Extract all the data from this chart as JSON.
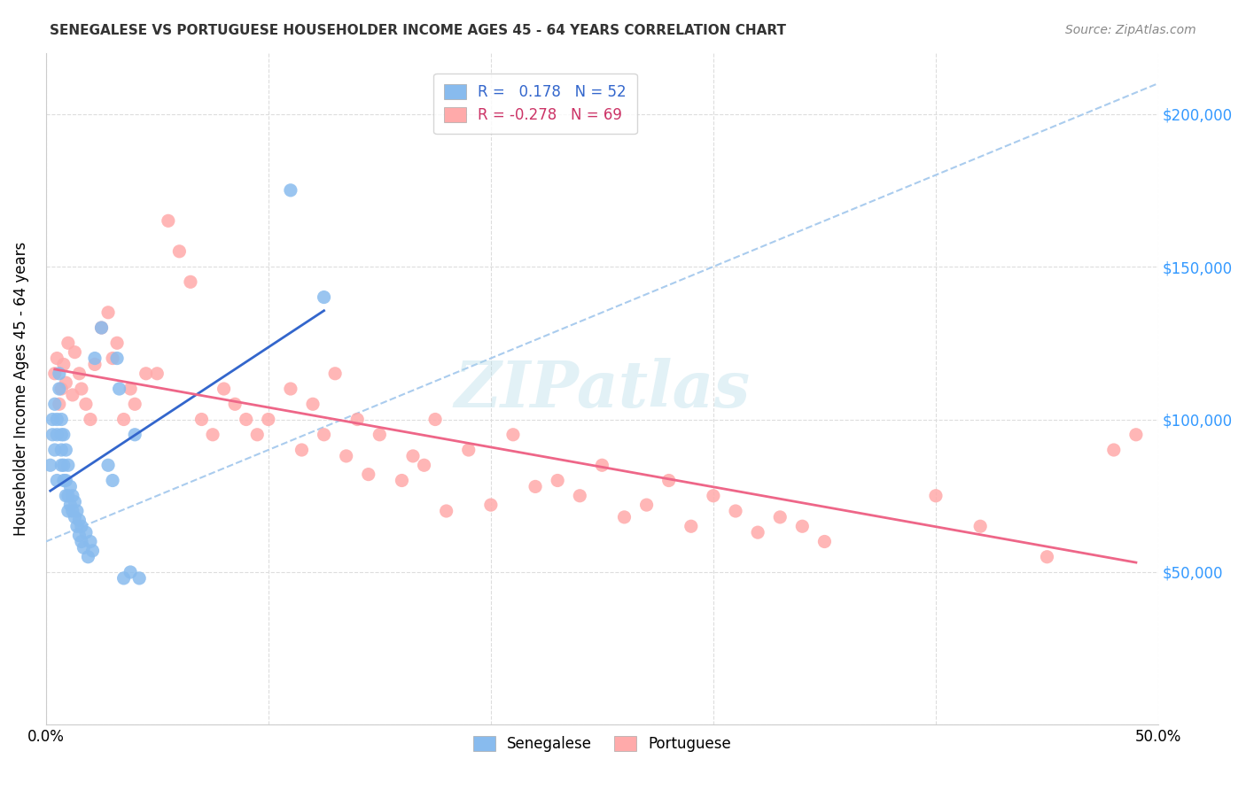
{
  "title": "SENEGALESE VS PORTUGUESE HOUSEHOLDER INCOME AGES 45 - 64 YEARS CORRELATION CHART",
  "source": "Source: ZipAtlas.com",
  "ylabel": "Householder Income Ages 45 - 64 years",
  "xlim": [
    0.0,
    0.5
  ],
  "ylim": [
    0,
    220000
  ],
  "color_senegalese": "#88bbee",
  "color_portuguese": "#ffaaaa",
  "color_trendline_blue": "#3366cc",
  "color_trendline_pink": "#ee6688",
  "color_dashed": "#aaccee",
  "watermark": "ZIPatlas",
  "senegalese_x": [
    0.002,
    0.003,
    0.003,
    0.004,
    0.004,
    0.005,
    0.005,
    0.005,
    0.006,
    0.006,
    0.007,
    0.007,
    0.007,
    0.007,
    0.008,
    0.008,
    0.008,
    0.009,
    0.009,
    0.009,
    0.01,
    0.01,
    0.01,
    0.011,
    0.011,
    0.012,
    0.012,
    0.013,
    0.013,
    0.014,
    0.014,
    0.015,
    0.015,
    0.016,
    0.016,
    0.017,
    0.018,
    0.019,
    0.02,
    0.021,
    0.022,
    0.025,
    0.028,
    0.03,
    0.032,
    0.033,
    0.035,
    0.038,
    0.04,
    0.042,
    0.11,
    0.125
  ],
  "senegalese_y": [
    85000,
    95000,
    100000,
    90000,
    105000,
    80000,
    95000,
    100000,
    110000,
    115000,
    85000,
    90000,
    95000,
    100000,
    80000,
    85000,
    95000,
    75000,
    80000,
    90000,
    70000,
    75000,
    85000,
    72000,
    78000,
    70000,
    75000,
    68000,
    73000,
    65000,
    70000,
    62000,
    67000,
    60000,
    65000,
    58000,
    63000,
    55000,
    60000,
    57000,
    120000,
    130000,
    85000,
    80000,
    120000,
    110000,
    48000,
    50000,
    95000,
    48000,
    175000,
    140000
  ],
  "portuguese_x": [
    0.004,
    0.005,
    0.006,
    0.007,
    0.008,
    0.009,
    0.01,
    0.012,
    0.013,
    0.015,
    0.016,
    0.018,
    0.02,
    0.022,
    0.025,
    0.028,
    0.03,
    0.032,
    0.035,
    0.038,
    0.04,
    0.045,
    0.05,
    0.055,
    0.06,
    0.065,
    0.07,
    0.075,
    0.08,
    0.085,
    0.09,
    0.095,
    0.1,
    0.11,
    0.115,
    0.12,
    0.125,
    0.13,
    0.135,
    0.14,
    0.145,
    0.15,
    0.16,
    0.165,
    0.17,
    0.175,
    0.18,
    0.19,
    0.2,
    0.21,
    0.22,
    0.23,
    0.24,
    0.25,
    0.26,
    0.27,
    0.28,
    0.29,
    0.3,
    0.31,
    0.32,
    0.33,
    0.34,
    0.35,
    0.4,
    0.42,
    0.45,
    0.48,
    0.49
  ],
  "portuguese_y": [
    115000,
    120000,
    105000,
    110000,
    118000,
    112000,
    125000,
    108000,
    122000,
    115000,
    110000,
    105000,
    100000,
    118000,
    130000,
    135000,
    120000,
    125000,
    100000,
    110000,
    105000,
    115000,
    115000,
    165000,
    155000,
    145000,
    100000,
    95000,
    110000,
    105000,
    100000,
    95000,
    100000,
    110000,
    90000,
    105000,
    95000,
    115000,
    88000,
    100000,
    82000,
    95000,
    80000,
    88000,
    85000,
    100000,
    70000,
    90000,
    72000,
    95000,
    78000,
    80000,
    75000,
    85000,
    68000,
    72000,
    80000,
    65000,
    75000,
    70000,
    63000,
    68000,
    65000,
    60000,
    75000,
    65000,
    55000,
    90000,
    95000
  ]
}
